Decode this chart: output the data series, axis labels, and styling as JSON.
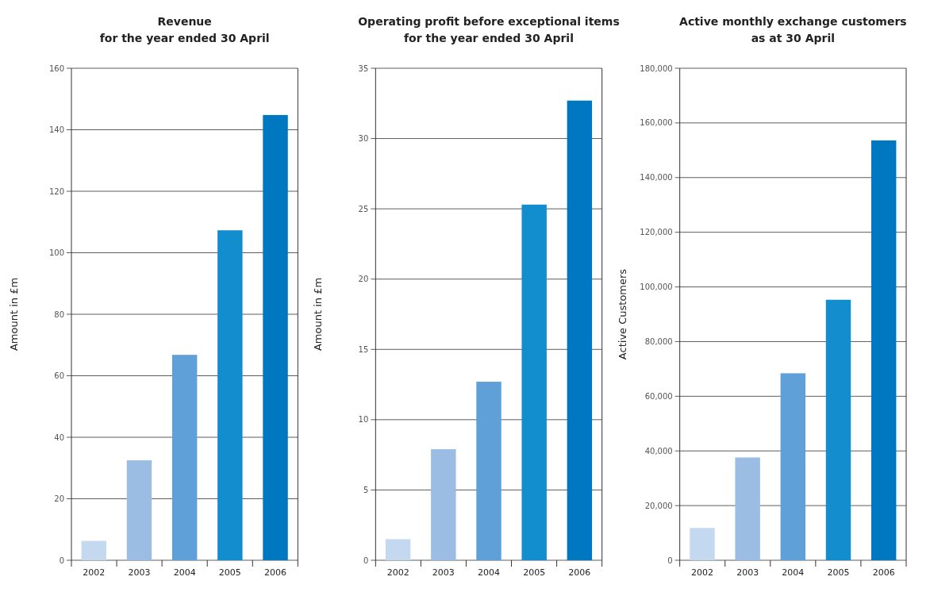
{
  "chart_data": [
    {
      "type": "bar",
      "title": "Revenue",
      "subtitle": "for the year ended 30 April",
      "ylabel": "Amount in £m",
      "categories": [
        "2002",
        "2003",
        "2004",
        "2005",
        "2006"
      ],
      "values": [
        6.3,
        32.5,
        66.8,
        107.3,
        144.8
      ],
      "colors": [
        "#c4d8f0",
        "#9bbde4",
        "#5fa0d8",
        "#128ecf",
        "#0077c1"
      ],
      "ylim": [
        0,
        160
      ],
      "yticks": [
        0,
        20,
        40,
        60,
        80,
        100,
        120,
        140,
        160
      ],
      "grid": "y"
    },
    {
      "type": "bar",
      "title": "Operating profit before exceptional items",
      "subtitle": "for the year ended 30 April",
      "ylabel": "Amount in £m",
      "categories": [
        "2002",
        "2003",
        "2004",
        "2005",
        "2006"
      ],
      "values": [
        1.5,
        7.9,
        12.7,
        25.3,
        32.7
      ],
      "colors": [
        "#c4d8f0",
        "#9bbde4",
        "#5fa0d8",
        "#128ecf",
        "#0077c1"
      ],
      "ylim": [
        0,
        35
      ],
      "yticks": [
        0,
        5,
        10,
        15,
        20,
        25,
        30,
        35
      ],
      "grid": "y"
    },
    {
      "type": "bar",
      "title": "Active monthly exchange customers",
      "subtitle": "as at 30 April",
      "ylabel": "Active Customers",
      "categories": [
        "2002",
        "2003",
        "2004",
        "2005",
        "2006"
      ],
      "values": [
        11800,
        37600,
        68400,
        95300,
        153600
      ],
      "colors": [
        "#c4d8f0",
        "#9bbde4",
        "#5fa0d8",
        "#128ecf",
        "#0077c1"
      ],
      "ylim": [
        0,
        180000
      ],
      "yticks": [
        0,
        {
          "value": 20000,
          "label": "20,000"
        },
        {
          "value": 40000,
          "label": "40,000"
        },
        {
          "value": 60000,
          "label": "60,000"
        },
        {
          "value": 80000,
          "label": "80,000"
        },
        {
          "value": 100000,
          "label": "100,000"
        },
        {
          "value": 120000,
          "label": "120,000"
        },
        {
          "value": 140000,
          "label": "140,000"
        },
        {
          "value": 160000,
          "label": "160,000"
        },
        {
          "value": 180000,
          "label": "180,000"
        }
      ],
      "grid": "y"
    }
  ]
}
